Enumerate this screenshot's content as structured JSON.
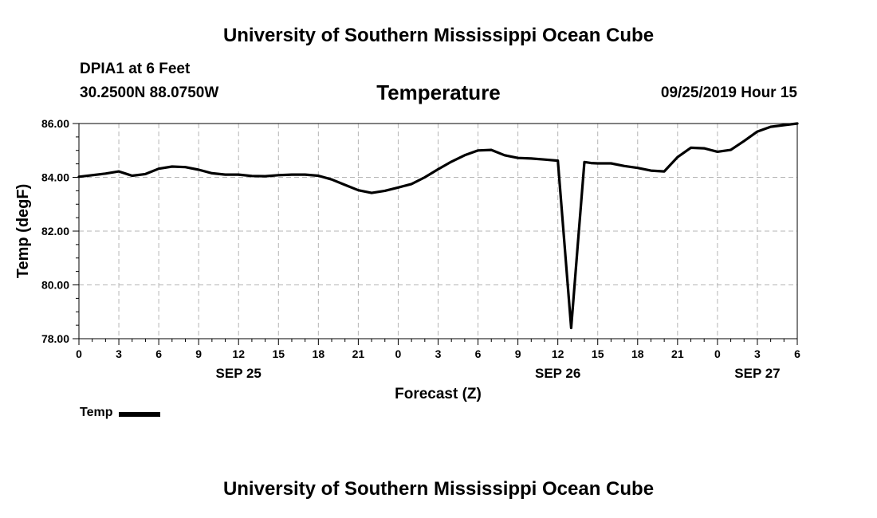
{
  "header": {
    "top_title": "University of Southern Mississippi Ocean Cube",
    "bottom_title": "University of Southern Mississippi Ocean Cube",
    "station_name": "DPIA1 at 6 Feet",
    "station_coords": "30.2500N 88.0750W",
    "timestamp": "09/25/2019 Hour 15"
  },
  "colors": {
    "line": "#000000",
    "grid": "#b4b4b4",
    "background": "#ffffff"
  },
  "chart_data": {
    "type": "line",
    "title": "Temperature",
    "xlabel": "Forecast (Z)",
    "ylabel": "Temp (degF)",
    "x_unit": "hours since 2019-09-25 00Z",
    "xlim": [
      0,
      54
    ],
    "ylim": [
      78,
      86
    ],
    "yticks": [
      78,
      80,
      82,
      84,
      86
    ],
    "ytick_labels": [
      "78.00",
      "80.00",
      "82.00",
      "84.00",
      "86.00"
    ],
    "xticks": [
      0,
      3,
      6,
      9,
      12,
      15,
      18,
      21,
      24,
      27,
      30,
      33,
      36,
      39,
      42,
      45,
      48,
      51,
      54
    ],
    "xtick_labels": [
      "0",
      "3",
      "6",
      "9",
      "12",
      "15",
      "18",
      "21",
      "0",
      "3",
      "6",
      "9",
      "12",
      "15",
      "18",
      "21",
      "0",
      "3",
      "6"
    ],
    "date_labels": [
      {
        "x": 12,
        "label": "SEP 25"
      },
      {
        "x": 36,
        "label": "SEP 26"
      },
      {
        "x": 51,
        "label": "SEP 27"
      }
    ],
    "grid": true,
    "legend": {
      "position": "bottom-left",
      "entries": [
        "Temp"
      ]
    },
    "series": [
      {
        "name": "Temp",
        "x": [
          0,
          1,
          2,
          3,
          3.5,
          4,
          5,
          6,
          7,
          8,
          9,
          10,
          11,
          12,
          13,
          14,
          15,
          16,
          17,
          18,
          19,
          20,
          21,
          22,
          23,
          24,
          25,
          26,
          27,
          28,
          29,
          30,
          31,
          32,
          33,
          34,
          35,
          36,
          37,
          37.5,
          38,
          38.5,
          39,
          40,
          41,
          42,
          43,
          44,
          45,
          46,
          47,
          48,
          49,
          50,
          51,
          52,
          53,
          54
        ],
        "values": [
          84.02,
          84.08,
          84.14,
          84.22,
          84.14,
          84.06,
          84.12,
          84.32,
          84.4,
          84.38,
          84.28,
          84.15,
          84.1,
          84.1,
          84.05,
          84.04,
          84.08,
          84.1,
          84.1,
          84.06,
          83.92,
          83.72,
          83.52,
          83.42,
          83.5,
          83.62,
          83.75,
          84.0,
          84.3,
          84.58,
          84.82,
          85.0,
          85.02,
          84.82,
          84.72,
          84.7,
          84.66,
          84.62,
          78.4,
          81.5,
          84.57,
          84.53,
          84.52,
          84.52,
          84.42,
          84.35,
          84.25,
          84.22,
          84.75,
          85.1,
          85.08,
          84.95,
          85.02,
          85.35,
          85.7,
          85.88,
          85.94,
          86.0
        ]
      }
    ]
  }
}
